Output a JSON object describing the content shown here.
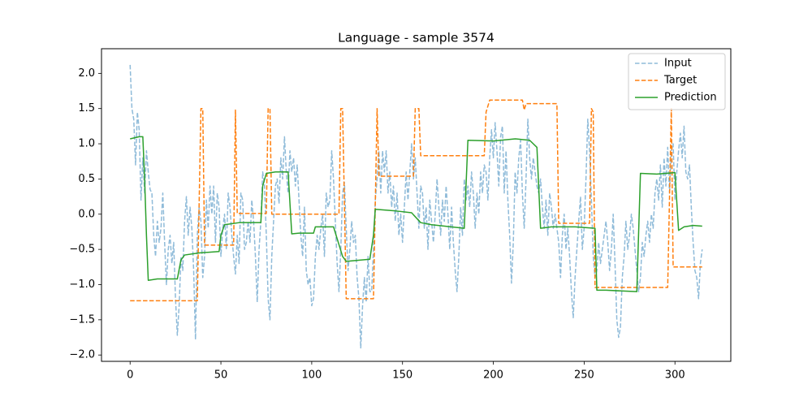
{
  "chart_data": {
    "type": "line",
    "title": "Language - sample 3574",
    "xlim": [
      -15.75,
      330.75
    ],
    "ylim": [
      -2.09,
      2.35
    ],
    "xticks": [
      0,
      50,
      100,
      150,
      200,
      250,
      300
    ],
    "yticks": [
      {
        "value": -2.0,
        "label": "−2.0"
      },
      {
        "value": -1.5,
        "label": "−1.5"
      },
      {
        "value": -1.0,
        "label": "−1.0"
      },
      {
        "value": -0.5,
        "label": "−0.5"
      },
      {
        "value": 0.0,
        "label": "0.0"
      },
      0.5,
      {
        "value": 1.0,
        "label": "1.0"
      },
      1.5,
      {
        "value": 2.0,
        "label": "2.0"
      }
    ],
    "grid": false,
    "legend": "upper right",
    "series": [
      {
        "name": "Input",
        "color": "#1f77b4",
        "linestyle": "dashed",
        "alpha": 0.5,
        "x": [
          0,
          1,
          2,
          3,
          4,
          5,
          6,
          7,
          8,
          9,
          10,
          11,
          12,
          13,
          14,
          15,
          16,
          17,
          18,
          19,
          20,
          21,
          22,
          23,
          24,
          25,
          26,
          27,
          28,
          29,
          30,
          31,
          32,
          33,
          34,
          35,
          36,
          37,
          38,
          39,
          40,
          41,
          42,
          43,
          44,
          45,
          46,
          47,
          48,
          49,
          50,
          51,
          52,
          53,
          54,
          55,
          56,
          57,
          58,
          59,
          60,
          61,
          62,
          63,
          64,
          65,
          66,
          67,
          68,
          69,
          70,
          71,
          72,
          73,
          74,
          75,
          76,
          77,
          78,
          79,
          80,
          81,
          82,
          83,
          84,
          85,
          86,
          87,
          88,
          89,
          90,
          91,
          92,
          93,
          94,
          95,
          96,
          97,
          98,
          99,
          100,
          101,
          102,
          103,
          104,
          105,
          106,
          107,
          108,
          109,
          110,
          111,
          112,
          113,
          114,
          115,
          116,
          117,
          118,
          119,
          120,
          121,
          122,
          123,
          124,
          125,
          126,
          127,
          128,
          129,
          130,
          131,
          132,
          133,
          134,
          135,
          136,
          137,
          138,
          139,
          140,
          141,
          142,
          143,
          144,
          145,
          146,
          147,
          148,
          149,
          150,
          151,
          152,
          153,
          154,
          155,
          156,
          157,
          158,
          159,
          160,
          161,
          162,
          163,
          164,
          165,
          166,
          167,
          168,
          169,
          170,
          171,
          172,
          173,
          174,
          175,
          176,
          177,
          178,
          179,
          180,
          181,
          182,
          183,
          184,
          185,
          186,
          187,
          188,
          189,
          190,
          191,
          192,
          193,
          194,
          195,
          196,
          197,
          198,
          199,
          200,
          201,
          202,
          203,
          204,
          205,
          206,
          207,
          208,
          209,
          210,
          211,
          212,
          213,
          214,
          215,
          216,
          217,
          218,
          219,
          220,
          221,
          222,
          223,
          224,
          225,
          226,
          227,
          228,
          229,
          230,
          231,
          232,
          233,
          234,
          235,
          236,
          237,
          238,
          239,
          240,
          241,
          242,
          243,
          244,
          245,
          246,
          247,
          248,
          249,
          250,
          251,
          252,
          253,
          254,
          255,
          256,
          257,
          258,
          259,
          260,
          261,
          262,
          263,
          264,
          265,
          266,
          267,
          268,
          269,
          270,
          271,
          272,
          273,
          274,
          275,
          276,
          277,
          278,
          279,
          280,
          281,
          282,
          283,
          284,
          285,
          286,
          287,
          288,
          289,
          290,
          291,
          292,
          293,
          294,
          295,
          296,
          297,
          298,
          299,
          300,
          301,
          302,
          303,
          304,
          305,
          306,
          307,
          308,
          309,
          310,
          311,
          312,
          313,
          314,
          315
        ],
        "values": [
          2.12,
          1.5,
          1.35,
          0.7,
          1.45,
          1.2,
          0.2,
          0.8,
          0.3,
          0.9,
          0.6,
          0.35,
          0.3,
          -0.3,
          -0.6,
          -0.1,
          -0.4,
          -0.2,
          0.3,
          -0.4,
          -1.0,
          -0.5,
          -0.3,
          -0.7,
          -0.4,
          -1.2,
          -1.72,
          -1.3,
          -0.6,
          -0.8,
          -0.1,
          0.25,
          -0.3,
          0.1,
          -0.2,
          -0.8,
          -1.78,
          -0.3,
          0.1,
          -0.1,
          -0.9,
          -0.6,
          0.2,
          -0.2,
          0.4,
          0.0,
          0.4,
          -0.4,
          0.3,
          0.1,
          -0.6,
          -0.2,
          0.0,
          -0.5,
          0.3,
          0.1,
          -0.3,
          -0.6,
          -0.85,
          -0.3,
          -0.7,
          0.3,
          0.2,
          -0.5,
          -0.4,
          -0.1,
          -0.4,
          0.2,
          -0.1,
          -0.6,
          -1.25,
          -0.5,
          -0.1,
          0.6,
          0.4,
          -0.3,
          -1.2,
          -1.5,
          -0.6,
          -0.1,
          0.4,
          0.5,
          0.15,
          0.8,
          0.5,
          1.1,
          0.6,
          0.3,
          0.9,
          0.6,
          0.8,
          0.4,
          0.7,
          0.2,
          -0.3,
          -0.6,
          0.1,
          -0.8,
          -1.0,
          -0.9,
          -1.3,
          -1.2,
          -0.6,
          -0.3,
          -0.5,
          -0.2,
          0.0,
          -0.6,
          0.3,
          0.1,
          0.2,
          0.9,
          0.5,
          -0.1,
          -0.7,
          -1.1,
          -0.5,
          0.3,
          0.45,
          -0.2,
          -0.8,
          -0.5,
          -0.1,
          -0.4,
          -0.3,
          -0.9,
          -1.2,
          -1.9,
          -1.3,
          -0.9,
          -1.25,
          -0.6,
          -1.1,
          -1.1,
          -0.5,
          0.2,
          0.5,
          0.9,
          0.3,
          0.9,
          0.6,
          0.9,
          0.3,
          0.6,
          0.1,
          0.4,
          -0.1,
          0.3,
          -0.3,
          0.0,
          -0.4,
          0.1,
          0.6,
          0.2,
          0.6,
          1.0,
          0.5,
          0.8,
          0.3,
          -0.2,
          0.4,
          0.3,
          -0.2,
          0.1,
          -0.5,
          0.2,
          -0.1,
          -0.4,
          0.0,
          0.5,
          0.1,
          -0.3,
          0.2,
          -0.1,
          0.4,
          0.0,
          -0.5,
          0.1,
          -0.4,
          -0.8,
          -1.1,
          -0.6,
          0.1,
          -0.3,
          0.5,
          0.2,
          0.4,
          0.1,
          0.6,
          0.3,
          -0.2,
          0.3,
          0.0,
          0.6,
          0.3,
          0.7,
          0.6,
          0.2,
          0.8,
          1.2,
          0.8,
          1.3,
          0.9,
          0.4,
          1.1,
          1.25,
          0.3,
          0.9,
          0.2,
          -0.3,
          -0.98,
          -0.4,
          0.6,
          0.3,
          0.8,
          1.05,
          0.3,
          -0.2,
          0.5,
          1.35,
          0.8,
          0.5,
          0.8,
          0.6,
          0.4,
          0.3,
          0.5,
          0.1,
          -0.2,
          0.2,
          -0.3,
          0.3,
          0.1,
          -0.2,
          0.0,
          -0.2,
          -0.4,
          -0.9,
          -0.3,
          0.0,
          -0.5,
          -0.2,
          -0.6,
          -1.1,
          -1.47,
          -0.9,
          -0.5,
          -0.1,
          0.25,
          -0.5,
          -0.2,
          0.5,
          1.35,
          0.9,
          0.2,
          -0.6,
          -0.9,
          -0.8,
          -0.4,
          -0.7,
          -0.5,
          -0.3,
          -0.1,
          -0.4,
          -0.8,
          -0.5,
          0.0,
          -0.7,
          -1.5,
          -1.75,
          -1.6,
          -0.9,
          -0.6,
          -0.1,
          -0.5,
          -0.3,
          0.0,
          -0.2,
          -0.5,
          -0.8,
          -1.1,
          -0.9,
          -0.4,
          -0.6,
          -0.3,
          -0.1,
          -0.4,
          0.0,
          -0.2,
          0.3,
          0.5,
          0.2,
          0.7,
          0.1,
          0.8,
          0.4,
          0.95,
          0.3,
          0.9,
          1.0,
          0.2,
          0.6,
          0.9,
          1.15,
          0.8,
          1.25,
          0.6,
          0.5,
          0.7,
          0.1,
          -0.4,
          -0.8,
          -0.9,
          -1.2,
          -0.7,
          -0.5
        ]
      },
      {
        "name": "Target",
        "color": "#ff7f0e",
        "linestyle": "dashed",
        "alpha": 1,
        "x": [
          0,
          37,
          39,
          40,
          41,
          57,
          58,
          59,
          75,
          76,
          77,
          78,
          115,
          116,
          117,
          119,
          134,
          136,
          137,
          156,
          157,
          159,
          160,
          195,
          196,
          198,
          216,
          217,
          218,
          235,
          236,
          253,
          254,
          255,
          256,
          296,
          298,
          299,
          315
        ],
        "values": [
          -1.23,
          -1.23,
          1.5,
          1.5,
          -0.44,
          -0.44,
          1.48,
          0.01,
          0.01,
          1.5,
          1.5,
          0.0,
          0.0,
          1.5,
          1.5,
          -1.2,
          -1.2,
          1.5,
          0.54,
          0.54,
          1.5,
          1.5,
          0.83,
          0.83,
          1.45,
          1.62,
          1.62,
          1.48,
          1.57,
          1.57,
          -0.13,
          -0.13,
          1.5,
          1.45,
          -1.04,
          -1.04,
          1.5,
          -0.75,
          -0.75
        ]
      },
      {
        "name": "Prediction",
        "color": "#2ca02c",
        "linestyle": "solid",
        "alpha": 1,
        "x": [
          0,
          5,
          7,
          8,
          9,
          10,
          15,
          26,
          28,
          30,
          38,
          49,
          50,
          52,
          60,
          72,
          73,
          75,
          80,
          87,
          89,
          93,
          101,
          102,
          112,
          117,
          119,
          132,
          134,
          135,
          145,
          155,
          160,
          166,
          184,
          186,
          200,
          212,
          220,
          224,
          226,
          232,
          245,
          256,
          257,
          262,
          279,
          281,
          290,
          300,
          302,
          305,
          310,
          315
        ],
        "values": [
          1.07,
          1.1,
          1.1,
          0.5,
          -0.3,
          -0.94,
          -0.92,
          -0.92,
          -0.65,
          -0.58,
          -0.55,
          -0.53,
          -0.3,
          -0.15,
          -0.12,
          -0.12,
          0.4,
          0.58,
          0.6,
          0.6,
          -0.28,
          -0.27,
          -0.27,
          -0.18,
          -0.18,
          -0.6,
          -0.67,
          -0.64,
          -0.3,
          0.07,
          0.05,
          0.02,
          -0.12,
          -0.15,
          -0.2,
          1.05,
          1.04,
          1.07,
          1.05,
          0.95,
          -0.2,
          -0.18,
          -0.18,
          -0.2,
          -1.08,
          -1.08,
          -1.1,
          0.58,
          0.57,
          0.59,
          -0.23,
          -0.18,
          -0.16,
          -0.17
        ]
      }
    ]
  }
}
